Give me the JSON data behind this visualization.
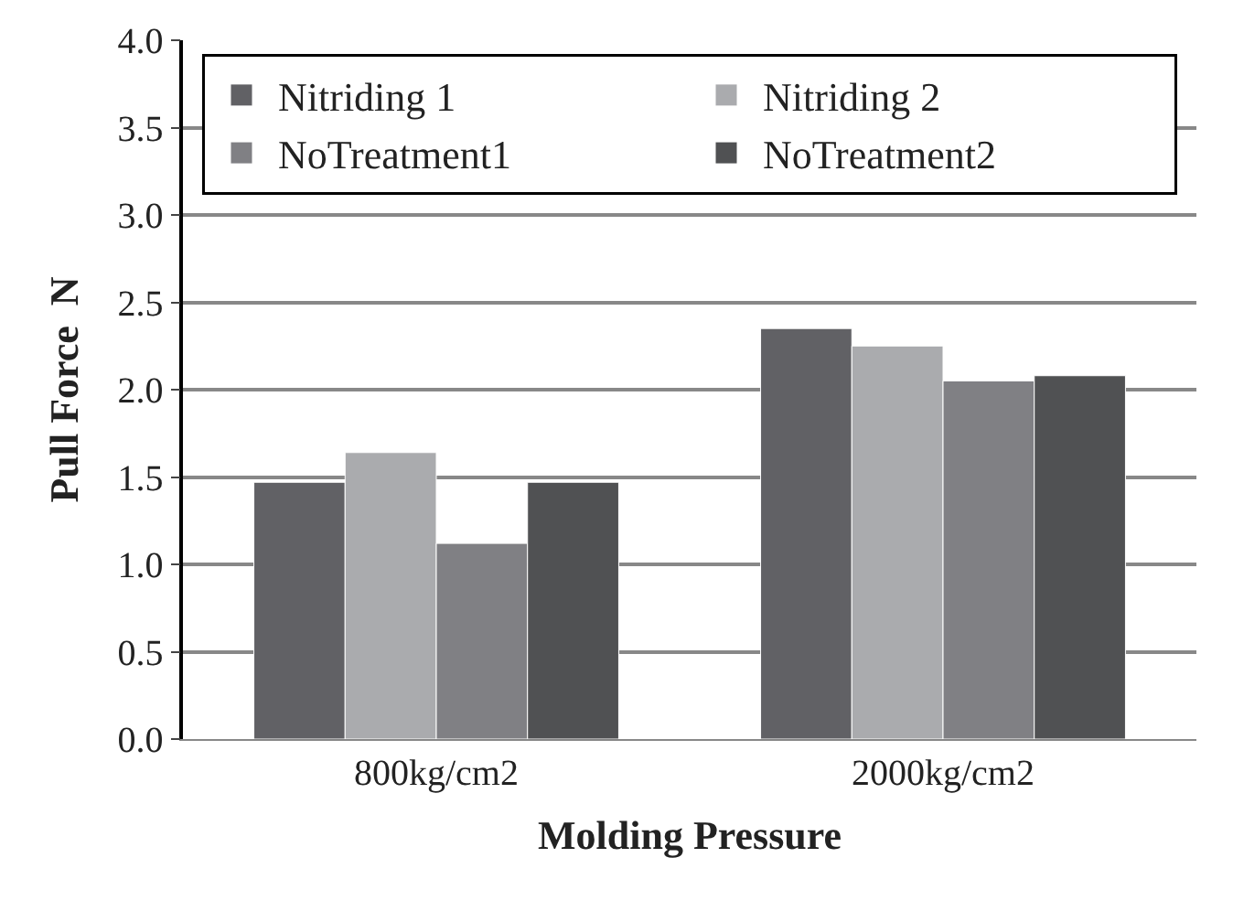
{
  "chart_data": {
    "type": "bar",
    "xlabel": "Molding Pressure",
    "ylabel": "Pull Force  N",
    "categories": [
      "800kg/cm2",
      "2000kg/cm2"
    ],
    "series": [
      {
        "name": "Nitriding 1",
        "color": "#616165",
        "values": [
          1.47,
          2.35
        ]
      },
      {
        "name": "Nitriding 2",
        "color": "#aaabae",
        "values": [
          1.64,
          2.25
        ]
      },
      {
        "name": "NoTreatment1",
        "color": "#808084",
        "values": [
          1.12,
          2.05
        ]
      },
      {
        "name": "NoTreatment2",
        "color": "#505153",
        "values": [
          1.47,
          2.08
        ]
      }
    ],
    "ylim": [
      0,
      4
    ],
    "yticks": [
      {
        "value": 0,
        "label": "0.0"
      },
      {
        "value": 0.5,
        "label": "0.5"
      },
      {
        "value": 1,
        "label": "1.0"
      },
      {
        "value": 1.5,
        "label": "1.5"
      },
      {
        "value": 2,
        "label": "2.0"
      },
      {
        "value": 2.5,
        "label": "2.5"
      },
      {
        "value": 3,
        "label": "3.0"
      },
      {
        "value": 3.5,
        "label": "3.5"
      },
      {
        "value": 4,
        "label": "4.0"
      }
    ],
    "grid": "y",
    "legend": "top"
  }
}
